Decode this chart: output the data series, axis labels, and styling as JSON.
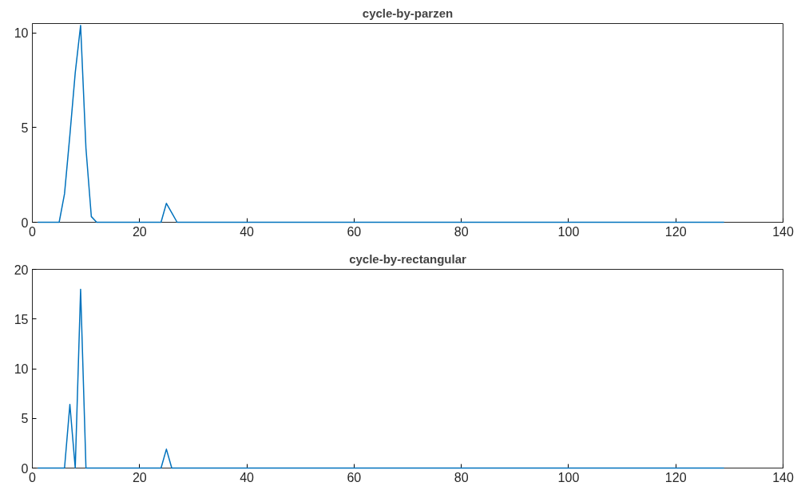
{
  "chart_data": [
    {
      "type": "line",
      "title": "cycle-by-parzen",
      "x": [
        1,
        5,
        6,
        7,
        8,
        9,
        10,
        11,
        12,
        23,
        24,
        25,
        26,
        27,
        129
      ],
      "series": [
        {
          "color": "#0072bd",
          "values": [
            0,
            0,
            1.5,
            4.6,
            7.9,
            10.4,
            3.9,
            0.3,
            0,
            0,
            0,
            1.0,
            0.5,
            0,
            0
          ]
        }
      ],
      "xlim": [
        0,
        140
      ],
      "xticks": [
        0,
        20,
        40,
        60,
        80,
        100,
        120,
        140
      ],
      "ylim": [
        0,
        10.5
      ],
      "yticks": [
        0,
        5,
        10
      ],
      "grid": false
    },
    {
      "type": "line",
      "title": "cycle-by-rectangular",
      "x": [
        1,
        6,
        7,
        8,
        9,
        10,
        24,
        25,
        26,
        129
      ],
      "series": [
        {
          "color": "#0072bd",
          "values": [
            0,
            0,
            6.4,
            0,
            18,
            0,
            0,
            1.9,
            0,
            0
          ]
        }
      ],
      "xlim": [
        0,
        140
      ],
      "xticks": [
        0,
        20,
        40,
        60,
        80,
        100,
        120,
        140
      ],
      "ylim": [
        0,
        20
      ],
      "yticks": [
        0,
        5,
        10,
        15,
        20
      ],
      "grid": false
    }
  ]
}
